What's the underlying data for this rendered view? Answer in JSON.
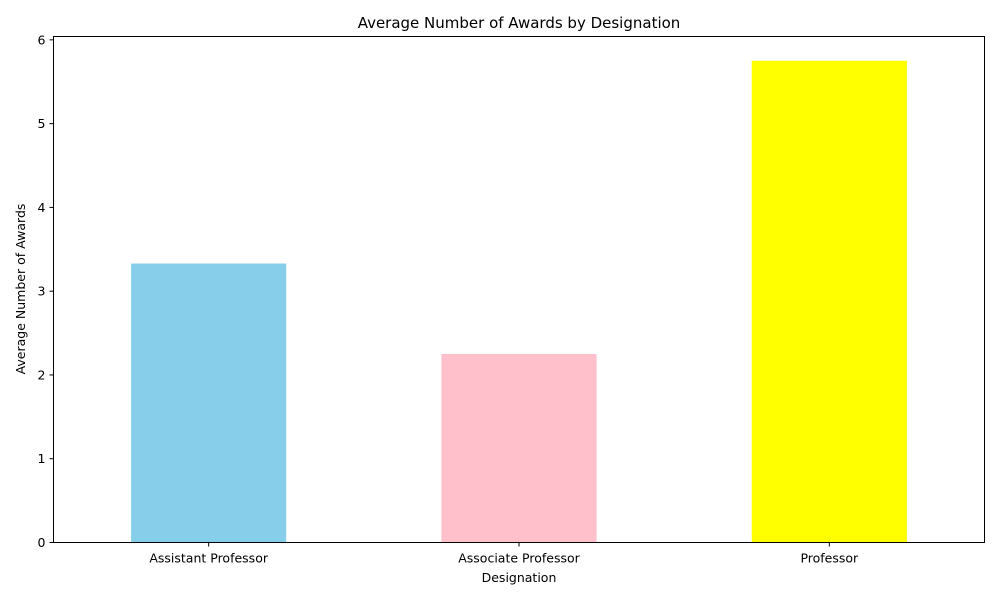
{
  "chart_data": {
    "type": "bar",
    "title": "Average Number of Awards by Designation",
    "xlabel": "Designation",
    "ylabel": "Average Number of Awards",
    "categories": [
      "Assistant Professor",
      "Associate Professor",
      "Professor"
    ],
    "values": [
      3.33,
      2.25,
      5.75
    ],
    "colors": [
      "#87ceeb",
      "#ffc0cb",
      "#ffff00"
    ],
    "ylim": [
      0,
      6.04
    ],
    "yticks": [
      "0",
      "1",
      "2",
      "3",
      "4",
      "5",
      "6"
    ],
    "grid": false,
    "legend": "none"
  }
}
